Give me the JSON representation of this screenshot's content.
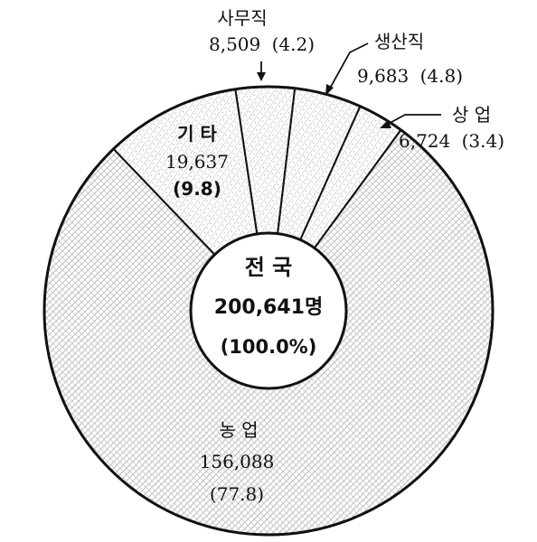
{
  "chart_data": {
    "type": "pie",
    "variant": "donut",
    "total": {
      "name": "전 국",
      "value": "200,641명",
      "percent": "(100.0%)"
    },
    "slices": [
      {
        "key": "office",
        "name": "사무직",
        "value": 8509,
        "value_label": "8,509",
        "percent": 4.2,
        "percent_label": "(4.2)"
      },
      {
        "key": "production",
        "name": "생산직",
        "value": 9683,
        "value_label": "9,683",
        "percent": 4.8,
        "percent_label": "(4.8)"
      },
      {
        "key": "commerce",
        "name": "상 업",
        "value": 6724,
        "value_label": "6,724",
        "percent": 3.4,
        "percent_label": "(3.4)"
      },
      {
        "key": "agriculture",
        "name": "농 업",
        "value": 156088,
        "value_label": "156,088",
        "percent": 77.8,
        "percent_label": "(77.8)"
      },
      {
        "key": "other",
        "name": "기 타",
        "value": 19637,
        "value_label": "19,637",
        "percent": 9.8,
        "percent_label": "(9.8)"
      }
    ],
    "legend": "none",
    "grid": false
  },
  "colors": {
    "stroke": "#111111",
    "hatch_light": "#c8c8c8",
    "hatch_dark": "#9a9a9a",
    "background": "#ffffff"
  }
}
